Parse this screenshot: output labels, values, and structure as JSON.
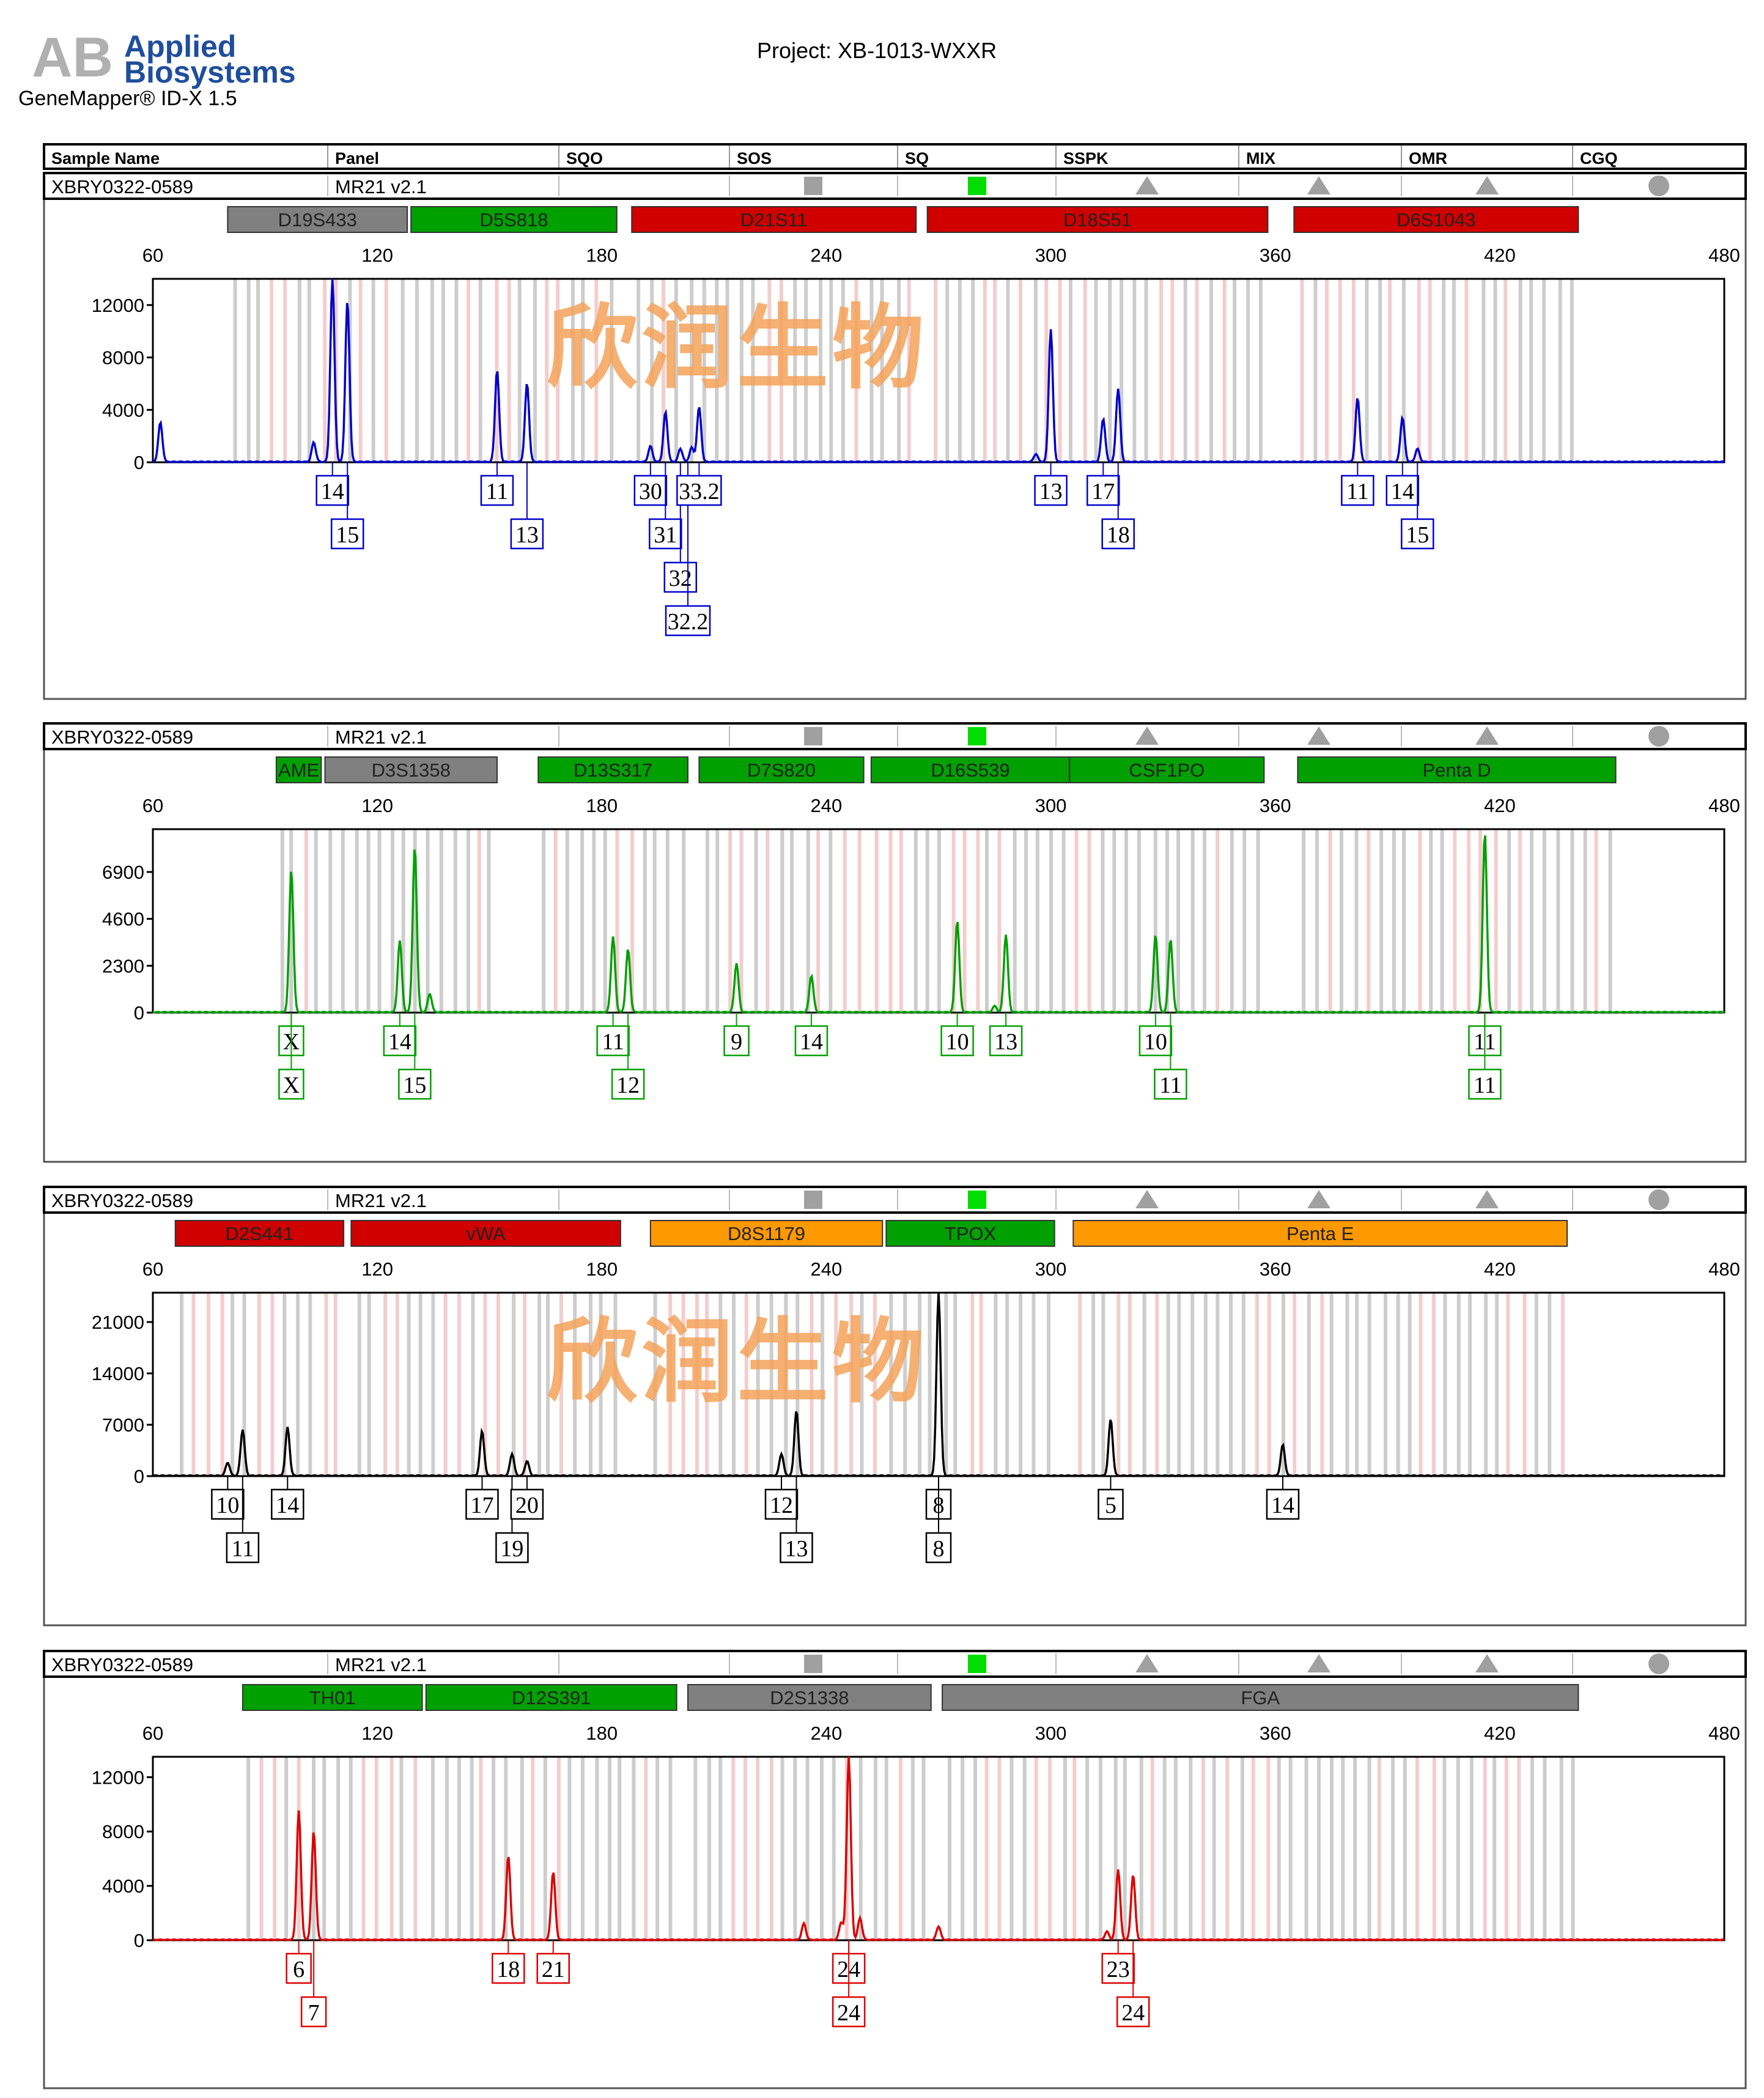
{
  "header": {
    "logo_line1": "Applied",
    "logo_line2": "Biosystems",
    "software": "GeneMapper® ID-X  1.5",
    "project": "Project: XB-1013-WXXR"
  },
  "columns": [
    "Sample Name",
    "Panel",
    "SQO",
    "SOS",
    "SQ",
    "SSPK",
    "MIX",
    "OMR",
    "CGQ"
  ],
  "watermark": "欣润生物",
  "colors": {
    "blue": "#0000cc",
    "green": "#00a000",
    "black": "#000000",
    "red": "#dd0000",
    "marker_gray": "#808080",
    "marker_green": "#00a000",
    "marker_red": "#d00000",
    "marker_orange": "#ff9900",
    "bin_gray": "#c8c8c8",
    "bin_pink": "#f2c8c8",
    "quality_gray": "#a0a0a0",
    "quality_green": "#00dd00",
    "watermark": "#f4a35a"
  },
  "chart_data": [
    {
      "type": "line",
      "dye": "blue",
      "sample": "XBRY0322-0589",
      "panel": "MR21  v2.1",
      "x_ticks": [
        60,
        120,
        180,
        240,
        300,
        360,
        420,
        480
      ],
      "xlim": [
        60,
        480
      ],
      "y_ticks": [
        0,
        4000,
        8000,
        12000
      ],
      "ylim": [
        0,
        14000
      ],
      "watermark": true,
      "markers": [
        {
          "name": "D19S433",
          "color": "gray",
          "start": 80,
          "end": 128
        },
        {
          "name": "D5S818",
          "color": "green",
          "start": 129,
          "end": 184
        },
        {
          "name": "D21S11",
          "color": "red",
          "start": 188,
          "end": 264
        },
        {
          "name": "D18S51",
          "color": "red",
          "start": 267,
          "end": 358
        },
        {
          "name": "D6S1043",
          "color": "red",
          "start": 365,
          "end": 441
        }
      ],
      "peaks": [
        [
          62,
          3000
        ],
        [
          103,
          1500
        ],
        [
          108,
          14000
        ],
        [
          112,
          12300
        ],
        [
          152,
          7000
        ],
        [
          160,
          6000
        ],
        [
          193,
          1200
        ],
        [
          197,
          3800
        ],
        [
          201,
          1000
        ],
        [
          204,
          1100
        ],
        [
          206,
          4200
        ],
        [
          296,
          600
        ],
        [
          300,
          10100
        ],
        [
          314,
          3300
        ],
        [
          318,
          5600
        ],
        [
          382,
          4900
        ],
        [
          394,
          3400
        ],
        [
          398,
          1000
        ]
      ],
      "alleles": [
        {
          "label": "14",
          "x": 108,
          "row": 0
        },
        {
          "label": "15",
          "x": 112,
          "row": 1
        },
        {
          "label": "11",
          "x": 152,
          "row": 0
        },
        {
          "label": "13",
          "x": 160,
          "row": 1
        },
        {
          "label": "30",
          "x": 193,
          "row": 0
        },
        {
          "label": "31",
          "x": 197,
          "row": 1
        },
        {
          "label": "32",
          "x": 201,
          "row": 2
        },
        {
          "label": "32.2",
          "x": 203,
          "row": 3
        },
        {
          "label": "33.2",
          "x": 206,
          "row": 0
        },
        {
          "label": "13",
          "x": 300,
          "row": 0
        },
        {
          "label": "17",
          "x": 314,
          "row": 0
        },
        {
          "label": "18",
          "x": 318,
          "row": 1
        },
        {
          "label": "11",
          "x": 382,
          "row": 0
        },
        {
          "label": "14",
          "x": 394,
          "row": 0
        },
        {
          "label": "15",
          "x": 398,
          "row": 1
        }
      ]
    },
    {
      "type": "line",
      "dye": "green",
      "sample": "XBRY0322-0589",
      "panel": "MR21  v2.1",
      "x_ticks": [
        60,
        120,
        180,
        240,
        300,
        360,
        420,
        480
      ],
      "xlim": [
        60,
        480
      ],
      "y_ticks": [
        0,
        2300,
        4600,
        6900
      ],
      "ylim": [
        0,
        9000
      ],
      "watermark": false,
      "markers": [
        {
          "name": "AME",
          "color": "green",
          "start": 93,
          "end": 105
        },
        {
          "name": "D3S1358",
          "color": "gray",
          "start": 106,
          "end": 152
        },
        {
          "name": "D13S317",
          "color": "green",
          "start": 163,
          "end": 203
        },
        {
          "name": "D7S820",
          "color": "green",
          "start": 206,
          "end": 250
        },
        {
          "name": "D16S539",
          "color": "green",
          "start": 252,
          "end": 305
        },
        {
          "name": "CSF1PO",
          "color": "green",
          "start": 305,
          "end": 357
        },
        {
          "name": "Penta D",
          "color": "green",
          "start": 366,
          "end": 451
        }
      ],
      "peaks": [
        [
          97,
          7000
        ],
        [
          126,
          3500
        ],
        [
          130,
          8100
        ],
        [
          134,
          900
        ],
        [
          183,
          3700
        ],
        [
          187,
          3100
        ],
        [
          216,
          2400
        ],
        [
          236,
          1800
        ],
        [
          275,
          4500
        ],
        [
          285,
          300
        ],
        [
          288,
          3800
        ],
        [
          328,
          3800
        ],
        [
          332,
          3600
        ],
        [
          416,
          8800
        ]
      ],
      "alleles": [
        {
          "label": "X",
          "x": 97,
          "row": 0
        },
        {
          "label": "X",
          "x": 97,
          "row": 1
        },
        {
          "label": "14",
          "x": 126,
          "row": 0
        },
        {
          "label": "15",
          "x": 130,
          "row": 1
        },
        {
          "label": "11",
          "x": 183,
          "row": 0
        },
        {
          "label": "12",
          "x": 187,
          "row": 1
        },
        {
          "label": "9",
          "x": 216,
          "row": 0
        },
        {
          "label": "14",
          "x": 236,
          "row": 0
        },
        {
          "label": "10",
          "x": 275,
          "row": 0
        },
        {
          "label": "13",
          "x": 288,
          "row": 0
        },
        {
          "label": "10",
          "x": 328,
          "row": 0
        },
        {
          "label": "11",
          "x": 332,
          "row": 1
        },
        {
          "label": "11",
          "x": 416,
          "row": 0
        },
        {
          "label": "11",
          "x": 416,
          "row": 1
        }
      ]
    },
    {
      "type": "line",
      "dye": "black",
      "sample": "XBRY0322-0589",
      "panel": "MR21  v2.1",
      "x_ticks": [
        60,
        120,
        180,
        240,
        300,
        360,
        420,
        480
      ],
      "xlim": [
        60,
        480
      ],
      "y_ticks": [
        0,
        7000,
        14000,
        21000
      ],
      "ylim": [
        0,
        25000
      ],
      "watermark": true,
      "markers": [
        {
          "name": "D2S441",
          "color": "red",
          "start": 66,
          "end": 111
        },
        {
          "name": "vWA",
          "color": "red",
          "start": 113,
          "end": 185
        },
        {
          "name": "D8S1179",
          "color": "orange",
          "start": 193,
          "end": 255
        },
        {
          "name": "TPOX",
          "color": "green",
          "start": 256,
          "end": 301
        },
        {
          "name": "Penta E",
          "color": "orange",
          "start": 306,
          "end": 438
        }
      ],
      "peaks": [
        [
          80,
          1800
        ],
        [
          84,
          6300
        ],
        [
          96,
          6600
        ],
        [
          148,
          6100
        ],
        [
          156,
          3000
        ],
        [
          160,
          2000
        ],
        [
          228,
          3000
        ],
        [
          232,
          8900
        ],
        [
          270,
          25000
        ],
        [
          316,
          7700
        ],
        [
          362,
          4200
        ]
      ],
      "alleles": [
        {
          "label": "10",
          "x": 80,
          "row": 0
        },
        {
          "label": "11",
          "x": 84,
          "row": 1
        },
        {
          "label": "14",
          "x": 96,
          "row": 0
        },
        {
          "label": "17",
          "x": 148,
          "row": 0
        },
        {
          "label": "19",
          "x": 156,
          "row": 1
        },
        {
          "label": "20",
          "x": 160,
          "row": 0
        },
        {
          "label": "12",
          "x": 228,
          "row": 0
        },
        {
          "label": "13",
          "x": 232,
          "row": 1
        },
        {
          "label": "8",
          "x": 270,
          "row": 0
        },
        {
          "label": "8",
          "x": 270,
          "row": 1
        },
        {
          "label": "5",
          "x": 316,
          "row": 0
        },
        {
          "label": "14",
          "x": 362,
          "row": 0
        }
      ]
    },
    {
      "type": "line",
      "dye": "red",
      "sample": "XBRY0322-0589",
      "panel": "MR21  v2.1",
      "x_ticks": [
        60,
        120,
        180,
        240,
        300,
        360,
        420,
        480
      ],
      "xlim": [
        60,
        480
      ],
      "y_ticks": [
        0,
        4000,
        8000,
        12000
      ],
      "ylim": [
        0,
        13500
      ],
      "watermark": false,
      "markers": [
        {
          "name": "TH01",
          "color": "green",
          "start": 84,
          "end": 132
        },
        {
          "name": "D12S391",
          "color": "green",
          "start": 133,
          "end": 200
        },
        {
          "name": "D2S1338",
          "color": "gray",
          "start": 203,
          "end": 268
        },
        {
          "name": "FGA",
          "color": "gray",
          "start": 271,
          "end": 441
        }
      ],
      "peaks": [
        [
          99,
          9500
        ],
        [
          103,
          8000
        ],
        [
          155,
          6200
        ],
        [
          167,
          5000
        ],
        [
          244,
          1300
        ],
        [
          246,
          13500
        ],
        [
          249,
          1600
        ],
        [
          234,
          1200
        ],
        [
          270,
          1000
        ],
        [
          318,
          5200
        ],
        [
          322,
          4800
        ],
        [
          315,
          600
        ]
      ],
      "alleles": [
        {
          "label": "6",
          "x": 99,
          "row": 0
        },
        {
          "label": "7",
          "x": 103,
          "row": 1
        },
        {
          "label": "18",
          "x": 155,
          "row": 0
        },
        {
          "label": "21",
          "x": 167,
          "row": 0
        },
        {
          "label": "24",
          "x": 246,
          "row": 0
        },
        {
          "label": "24",
          "x": 246,
          "row": 1
        },
        {
          "label": "23",
          "x": 318,
          "row": 0
        },
        {
          "label": "24",
          "x": 322,
          "row": 1
        }
      ]
    }
  ]
}
